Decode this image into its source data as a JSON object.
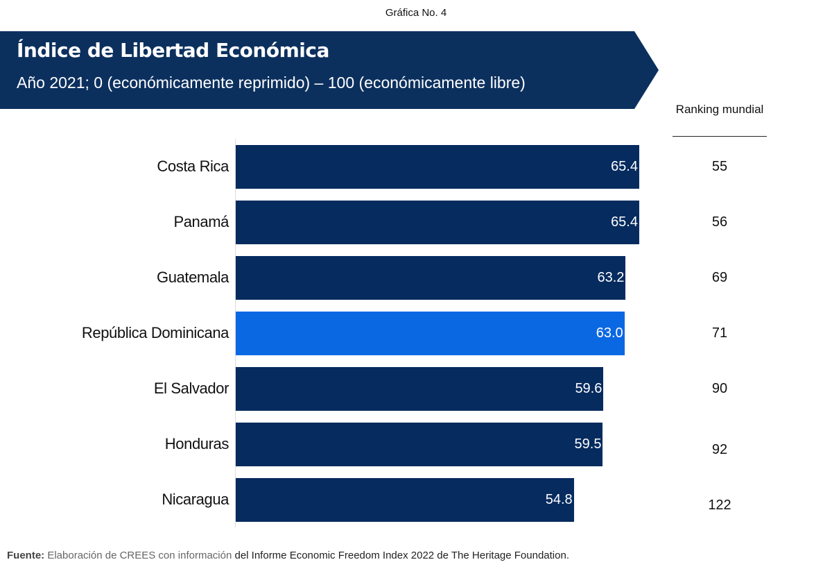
{
  "figure_number": "Gráfica No. 4",
  "banner": {
    "title": "Índice de Libertad Económica",
    "subtitle": "Año 2021; 0 (económicamente reprimido) – 100 (económicamente libre)",
    "color": "#0c305e"
  },
  "ranking_header": "Ranking mundial",
  "colors": {
    "bar_default": "#052b5f",
    "bar_highlight": "#0b68e3",
    "value_label": "#ffffff"
  },
  "chart_data": {
    "type": "bar",
    "orientation": "horizontal",
    "title": "Índice de Libertad Económica",
    "subtitle": "Año 2021; 0 (económicamente reprimido) – 100 (económicamente libre)",
    "xlabel": "",
    "ylabel": "",
    "xlim": [
      0,
      100
    ],
    "grid": false,
    "legend": "none",
    "categories": [
      "Costa Rica",
      "Panamá",
      "Guatemala",
      "República Dominicana",
      "El Salvador",
      "Honduras",
      "Nicaragua"
    ],
    "values": [
      65.4,
      65.4,
      63.2,
      63.0,
      59.6,
      59.5,
      54.8
    ],
    "value_labels": [
      "65.4",
      "65.4",
      "63.2",
      "63.0",
      "59.6",
      "59.5",
      "54.8"
    ],
    "highlighted": [
      false,
      false,
      false,
      true,
      false,
      false,
      false
    ],
    "ranking_mundial": [
      "55",
      "56",
      "69",
      "71",
      "90",
      "92",
      "122"
    ]
  },
  "source": {
    "label": "Fuente:",
    "text_part1": " Elaboración de CREES con información ",
    "text_part2": "del Informe Economic Freedom Index 2022 de The Heritage Foundation."
  }
}
